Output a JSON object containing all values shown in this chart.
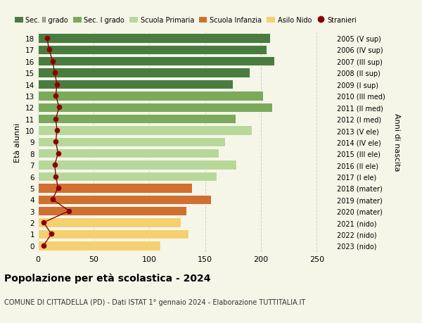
{
  "ages": [
    18,
    17,
    16,
    15,
    14,
    13,
    12,
    11,
    10,
    9,
    8,
    7,
    6,
    5,
    4,
    3,
    2,
    1,
    0
  ],
  "bar_values": [
    208,
    205,
    212,
    190,
    175,
    202,
    210,
    177,
    192,
    168,
    162,
    178,
    160,
    138,
    155,
    133,
    128,
    135,
    110
  ],
  "stranieri": [
    8,
    10,
    13,
    15,
    17,
    16,
    19,
    16,
    17,
    16,
    18,
    15,
    16,
    18,
    13,
    28,
    5,
    12,
    5
  ],
  "right_labels": [
    "2005 (V sup)",
    "2006 (IV sup)",
    "2007 (III sup)",
    "2008 (II sup)",
    "2009 (I sup)",
    "2010 (III med)",
    "2011 (II med)",
    "2012 (I med)",
    "2013 (V ele)",
    "2014 (IV ele)",
    "2015 (III ele)",
    "2016 (II ele)",
    "2017 (I ele)",
    "2018 (mater)",
    "2019 (mater)",
    "2020 (mater)",
    "2021 (nido)",
    "2022 (nido)",
    "2023 (nido)"
  ],
  "bar_colors": [
    "#4a7c3f",
    "#4a7c3f",
    "#4a7c3f",
    "#4a7c3f",
    "#4a7c3f",
    "#7aaa5a",
    "#7aaa5a",
    "#7aaa5a",
    "#b8d89a",
    "#b8d89a",
    "#b8d89a",
    "#b8d89a",
    "#b8d89a",
    "#d07030",
    "#d07030",
    "#d07030",
    "#f5d070",
    "#f5d070",
    "#f5d070"
  ],
  "legend_labels": [
    "Sec. II grado",
    "Sec. I grado",
    "Scuola Primaria",
    "Scuola Infanzia",
    "Asilo Nido",
    "Stranieri"
  ],
  "legend_colors": [
    "#4a7c3f",
    "#7aaa5a",
    "#b8d89a",
    "#d07030",
    "#f5d070",
    "#8b0000"
  ],
  "title": "Popolazione per età scolastica - 2024",
  "subtitle": "COMUNE DI CITTADELLA (PD) - Dati ISTAT 1° gennaio 2024 - Elaborazione TUTTITALIA.IT",
  "xlabel_right": "Anni di nascita",
  "ylabel": "Età alunni",
  "xlim": [
    0,
    265
  ],
  "stranieri_color": "#8b0000",
  "bg_color": "#f5f5e8",
  "grid_color": "#d0d0d0"
}
